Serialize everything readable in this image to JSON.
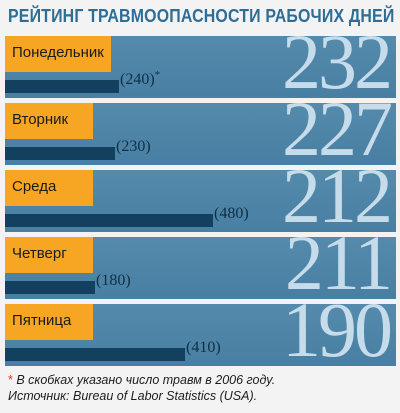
{
  "chart_data": {
    "type": "bar",
    "title": "РЕЙТИНГ ТРАВМООПАСНОСТИ РАБОЧИХ ДНЕЙ",
    "categories": [
      "Понедельник",
      "Вторник",
      "Среда",
      "Четверг",
      "Пятница"
    ],
    "series": [
      {
        "values": [
          232,
          227,
          212,
          211,
          190
        ]
      },
      {
        "values": [
          240,
          230,
          480,
          180,
          410
        ]
      }
    ],
    "value_labels": [
      "232",
      "227",
      "212",
      "211",
      "190"
    ],
    "prev_labels": [
      "(240)",
      "(230)",
      "(480)",
      "(180)",
      "(410)"
    ],
    "prev_marker": "*",
    "xlim": [
      0,
      500
    ],
    "colors": {
      "row_background": "#4a83a7",
      "day_box": "#f6a623",
      "previous_bar": "#13405f",
      "big_value": "#c7dcea",
      "title": "#2e6d96"
    }
  },
  "footnote": {
    "star": "*",
    "line1": "В скобках указано число травм в 2006 году.",
    "line2": "Источник: Bureau of Labor Statistics (USA)."
  }
}
